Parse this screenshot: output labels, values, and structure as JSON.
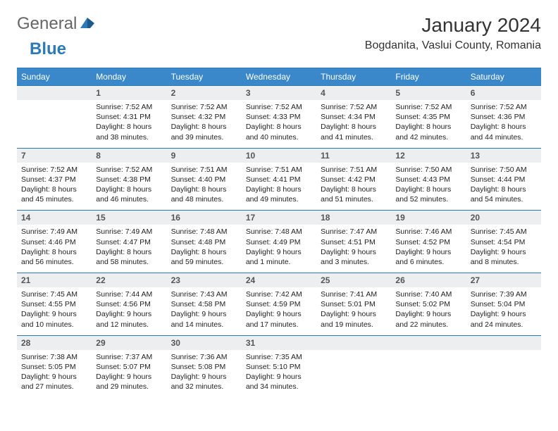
{
  "logo": {
    "part1": "General",
    "part2": "Blue"
  },
  "title": "January 2024",
  "location": "Bogdanita, Vaslui County, Romania",
  "colors": {
    "header_bg": "#3a88c9",
    "header_text": "#ffffff",
    "rule": "#2d7ab8",
    "daynum_bg": "#eceef0",
    "daynum_text": "#555555",
    "body_text": "#222222",
    "logo_gray": "#666666",
    "logo_blue": "#2d7ab8",
    "page_bg": "#ffffff"
  },
  "fonts": {
    "title_pt": 28,
    "location_pt": 16,
    "header_pt": 12,
    "daynum_pt": 12,
    "cell_pt": 10.5
  },
  "weekdays": [
    "Sunday",
    "Monday",
    "Tuesday",
    "Wednesday",
    "Thursday",
    "Friday",
    "Saturday"
  ],
  "weeks": [
    [
      null,
      {
        "n": "1",
        "sr": "7:52 AM",
        "ss": "4:31 PM",
        "dl1": "8 hours",
        "dl2": "and 38 minutes."
      },
      {
        "n": "2",
        "sr": "7:52 AM",
        "ss": "4:32 PM",
        "dl1": "8 hours",
        "dl2": "and 39 minutes."
      },
      {
        "n": "3",
        "sr": "7:52 AM",
        "ss": "4:33 PM",
        "dl1": "8 hours",
        "dl2": "and 40 minutes."
      },
      {
        "n": "4",
        "sr": "7:52 AM",
        "ss": "4:34 PM",
        "dl1": "8 hours",
        "dl2": "and 41 minutes."
      },
      {
        "n": "5",
        "sr": "7:52 AM",
        "ss": "4:35 PM",
        "dl1": "8 hours",
        "dl2": "and 42 minutes."
      },
      {
        "n": "6",
        "sr": "7:52 AM",
        "ss": "4:36 PM",
        "dl1": "8 hours",
        "dl2": "and 44 minutes."
      }
    ],
    [
      {
        "n": "7",
        "sr": "7:52 AM",
        "ss": "4:37 PM",
        "dl1": "8 hours",
        "dl2": "and 45 minutes."
      },
      {
        "n": "8",
        "sr": "7:52 AM",
        "ss": "4:38 PM",
        "dl1": "8 hours",
        "dl2": "and 46 minutes."
      },
      {
        "n": "9",
        "sr": "7:51 AM",
        "ss": "4:40 PM",
        "dl1": "8 hours",
        "dl2": "and 48 minutes."
      },
      {
        "n": "10",
        "sr": "7:51 AM",
        "ss": "4:41 PM",
        "dl1": "8 hours",
        "dl2": "and 49 minutes."
      },
      {
        "n": "11",
        "sr": "7:51 AM",
        "ss": "4:42 PM",
        "dl1": "8 hours",
        "dl2": "and 51 minutes."
      },
      {
        "n": "12",
        "sr": "7:50 AM",
        "ss": "4:43 PM",
        "dl1": "8 hours",
        "dl2": "and 52 minutes."
      },
      {
        "n": "13",
        "sr": "7:50 AM",
        "ss": "4:44 PM",
        "dl1": "8 hours",
        "dl2": "and 54 minutes."
      }
    ],
    [
      {
        "n": "14",
        "sr": "7:49 AM",
        "ss": "4:46 PM",
        "dl1": "8 hours",
        "dl2": "and 56 minutes."
      },
      {
        "n": "15",
        "sr": "7:49 AM",
        "ss": "4:47 PM",
        "dl1": "8 hours",
        "dl2": "and 58 minutes."
      },
      {
        "n": "16",
        "sr": "7:48 AM",
        "ss": "4:48 PM",
        "dl1": "8 hours",
        "dl2": "and 59 minutes."
      },
      {
        "n": "17",
        "sr": "7:48 AM",
        "ss": "4:49 PM",
        "dl1": "9 hours",
        "dl2": "and 1 minute."
      },
      {
        "n": "18",
        "sr": "7:47 AM",
        "ss": "4:51 PM",
        "dl1": "9 hours",
        "dl2": "and 3 minutes."
      },
      {
        "n": "19",
        "sr": "7:46 AM",
        "ss": "4:52 PM",
        "dl1": "9 hours",
        "dl2": "and 6 minutes."
      },
      {
        "n": "20",
        "sr": "7:45 AM",
        "ss": "4:54 PM",
        "dl1": "9 hours",
        "dl2": "and 8 minutes."
      }
    ],
    [
      {
        "n": "21",
        "sr": "7:45 AM",
        "ss": "4:55 PM",
        "dl1": "9 hours",
        "dl2": "and 10 minutes."
      },
      {
        "n": "22",
        "sr": "7:44 AM",
        "ss": "4:56 PM",
        "dl1": "9 hours",
        "dl2": "and 12 minutes."
      },
      {
        "n": "23",
        "sr": "7:43 AM",
        "ss": "4:58 PM",
        "dl1": "9 hours",
        "dl2": "and 14 minutes."
      },
      {
        "n": "24",
        "sr": "7:42 AM",
        "ss": "4:59 PM",
        "dl1": "9 hours",
        "dl2": "and 17 minutes."
      },
      {
        "n": "25",
        "sr": "7:41 AM",
        "ss": "5:01 PM",
        "dl1": "9 hours",
        "dl2": "and 19 minutes."
      },
      {
        "n": "26",
        "sr": "7:40 AM",
        "ss": "5:02 PM",
        "dl1": "9 hours",
        "dl2": "and 22 minutes."
      },
      {
        "n": "27",
        "sr": "7:39 AM",
        "ss": "5:04 PM",
        "dl1": "9 hours",
        "dl2": "and 24 minutes."
      }
    ],
    [
      {
        "n": "28",
        "sr": "7:38 AM",
        "ss": "5:05 PM",
        "dl1": "9 hours",
        "dl2": "and 27 minutes."
      },
      {
        "n": "29",
        "sr": "7:37 AM",
        "ss": "5:07 PM",
        "dl1": "9 hours",
        "dl2": "and 29 minutes."
      },
      {
        "n": "30",
        "sr": "7:36 AM",
        "ss": "5:08 PM",
        "dl1": "9 hours",
        "dl2": "and 32 minutes."
      },
      {
        "n": "31",
        "sr": "7:35 AM",
        "ss": "5:10 PM",
        "dl1": "9 hours",
        "dl2": "and 34 minutes."
      },
      null,
      null,
      null
    ]
  ],
  "labels": {
    "sunrise": "Sunrise: ",
    "sunset": "Sunset: ",
    "daylight": "Daylight: "
  }
}
